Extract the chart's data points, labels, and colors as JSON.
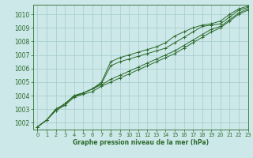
{
  "title": "Graphe pression niveau de la mer (hPa)",
  "bg_color": "#cce8e8",
  "grid_color": "#aacfcf",
  "line_color": "#2d6a2d",
  "marker_color": "#2d6a2d",
  "xlim": [
    -0.5,
    23
  ],
  "ylim": [
    1001.5,
    1010.7
  ],
  "yticks": [
    1002,
    1003,
    1004,
    1005,
    1006,
    1007,
    1008,
    1009,
    1010
  ],
  "xticks": [
    0,
    1,
    2,
    3,
    4,
    5,
    6,
    7,
    8,
    9,
    10,
    11,
    12,
    13,
    14,
    15,
    16,
    17,
    18,
    19,
    20,
    21,
    22,
    23
  ],
  "series": [
    [
      1001.7,
      1002.2,
      1002.9,
      1003.3,
      1003.9,
      1004.1,
      1004.3,
      1004.7,
      1005.0,
      1005.3,
      1005.6,
      1005.9,
      1006.2,
      1006.5,
      1006.8,
      1007.1,
      1007.5,
      1007.9,
      1008.3,
      1008.7,
      1009.0,
      1009.5,
      1010.0,
      1010.3
    ],
    [
      1001.7,
      1002.2,
      1002.9,
      1003.3,
      1003.9,
      1004.2,
      1004.5,
      1004.8,
      1005.2,
      1005.5,
      1005.8,
      1006.1,
      1006.4,
      1006.7,
      1007.0,
      1007.3,
      1007.7,
      1008.1,
      1008.5,
      1008.9,
      1009.1,
      1009.6,
      1010.1,
      1010.4
    ],
    [
      1001.7,
      1002.2,
      1003.0,
      1003.4,
      1004.0,
      1004.2,
      1004.5,
      1004.9,
      1006.2,
      1006.5,
      1006.7,
      1006.9,
      1007.1,
      1007.3,
      1007.5,
      1007.9,
      1008.3,
      1008.7,
      1009.1,
      1009.2,
      1009.3,
      1009.8,
      1010.3,
      1010.5
    ],
    [
      1001.7,
      1002.2,
      1003.0,
      1003.4,
      1004.0,
      1004.2,
      1004.5,
      1005.0,
      1006.5,
      1006.8,
      1007.0,
      1007.2,
      1007.4,
      1007.6,
      1007.9,
      1008.4,
      1008.7,
      1009.0,
      1009.2,
      1009.3,
      1009.5,
      1010.0,
      1010.4,
      1010.6
    ]
  ]
}
